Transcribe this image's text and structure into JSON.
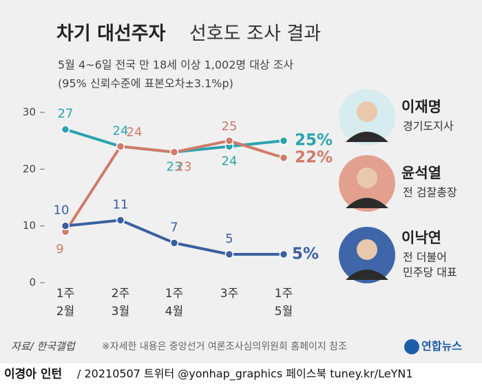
{
  "chart_data": {
    "type": "line",
    "title": {
      "bold": "차기 대선주자",
      "regular": "선호도 조사 결과"
    },
    "subtitle": [
      "5월 4~6일 전국 만 18세 이상 1,002명 대상 조사",
      "(95% 신뢰수준에 표본오차±3.1%p)"
    ],
    "categories": [
      [
        "1주",
        "2월"
      ],
      [
        "2주",
        "3월"
      ],
      [
        "1주",
        "4월"
      ],
      [
        "3주",
        null
      ],
      [
        "1주",
        "5월"
      ]
    ],
    "ylim": [
      0,
      30
    ],
    "yticks": [
      0,
      10,
      20,
      30
    ],
    "series": [
      {
        "name": "이재명",
        "role": [
          "경기도지사"
        ],
        "color": "#2aa3ad",
        "values": [
          27,
          24,
          23,
          24,
          25
        ],
        "value_labels": [
          "27",
          "24",
          "23",
          "24",
          "25%"
        ]
      },
      {
        "name": "윤석열",
        "role": [
          "전 검찰총장"
        ],
        "color": "#d07a68",
        "values": [
          9,
          24,
          23,
          25,
          22
        ],
        "value_labels": [
          "9",
          "24",
          "23",
          "25",
          "22%"
        ]
      },
      {
        "name": "이낙연",
        "role": [
          "전 더불어",
          "민주당 대표"
        ],
        "color": "#3a5fa0",
        "values": [
          10,
          11,
          7,
          5,
          5
        ],
        "value_labels": [
          "10",
          "11",
          "7",
          "5",
          "5%"
        ]
      }
    ],
    "source": "자료/ 한국갤럽",
    "note": "※자세한 내용은 중앙선거 여론조사심의위원회 홈페이지 참조",
    "logo": "연합뉴스",
    "credit": {
      "author": "이경아 인턴",
      "rest": "/ 20210507 트위터 @yonhap_graphics  페이스북 tuney.kr/LeYN1"
    }
  }
}
